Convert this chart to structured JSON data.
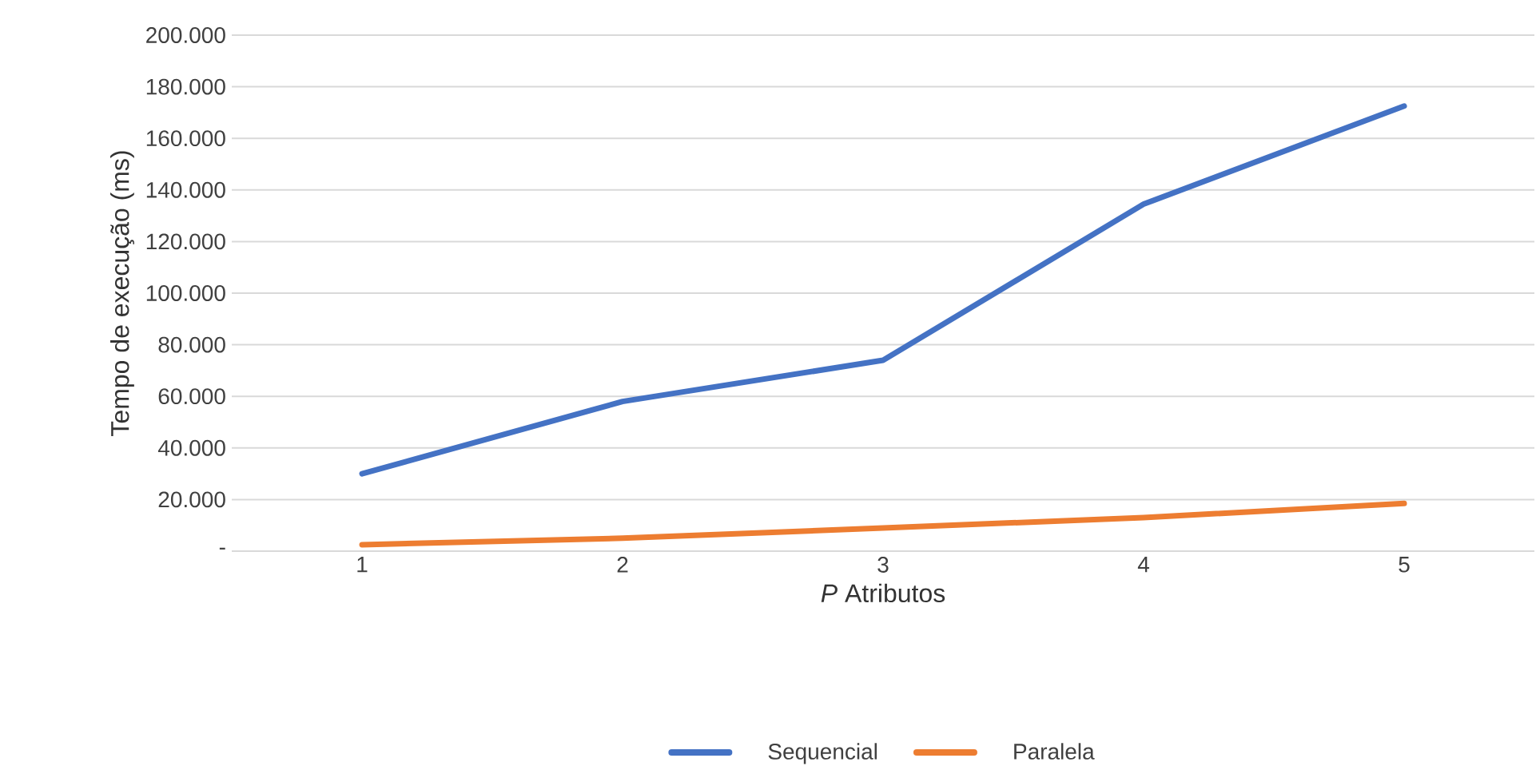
{
  "chart_data": {
    "type": "line",
    "xlabel": "*P* Atributos",
    "ylabel": "Tempo de execução (ms)",
    "categories": [
      "1",
      "2",
      "3",
      "4",
      "5"
    ],
    "series": [
      {
        "name": "Sequencial",
        "color": "#4472c4",
        "values": [
          30000,
          58000,
          74000,
          134500,
          172500
        ]
      },
      {
        "name": "Paralela",
        "color": "#ed7d31",
        "values": [
          2500,
          5000,
          9000,
          13000,
          18500
        ]
      }
    ],
    "ylim": [
      0,
      200000
    ],
    "yticks": [
      {
        "value": 0,
        "label": "-"
      },
      {
        "value": 20000,
        "label": "20.000"
      },
      {
        "value": 40000,
        "label": "40.000"
      },
      {
        "value": 60000,
        "label": "60.000"
      },
      {
        "value": 80000,
        "label": "80.000"
      },
      {
        "value": 100000,
        "label": "100.000"
      },
      {
        "value": 120000,
        "label": "120.000"
      },
      {
        "value": 140000,
        "label": "140.000"
      },
      {
        "value": 160000,
        "label": "160.000"
      },
      {
        "value": 180000,
        "label": "180.000"
      },
      {
        "value": 200000,
        "label": "200.000"
      }
    ],
    "grid": "y",
    "legend": "bottom",
    "marker": "none",
    "line_style": "solid"
  }
}
